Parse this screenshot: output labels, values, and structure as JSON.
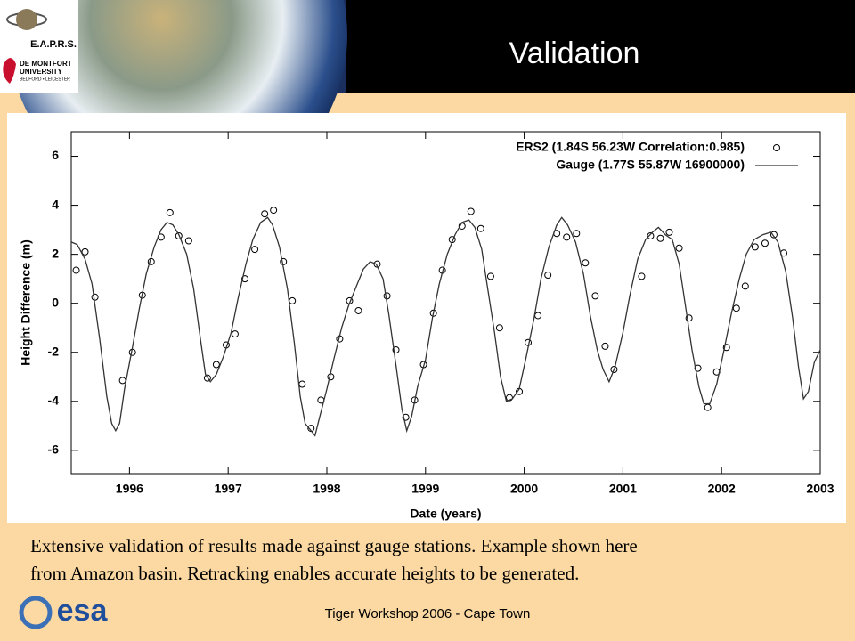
{
  "header": {
    "title": "Validation",
    "logo_name": "E.A.P.R.S.",
    "university_line1": "DE MONTFORT",
    "university_line2": "UNIVERSITY",
    "university_line3": "BEDFORD • LEICESTER"
  },
  "chart_data": {
    "type": "scatter",
    "xlabel": "Date (years)",
    "ylabel": "Height Difference (m)",
    "xlim": [
      1995.41,
      2003.0
    ],
    "ylim": [
      -6.95,
      7.0
    ],
    "xticks": [
      1996,
      1997,
      1998,
      1999,
      2000,
      2001,
      2002,
      2003
    ],
    "yticks": [
      -6,
      -4,
      -2,
      0,
      2,
      4,
      6
    ],
    "legend": "upper right",
    "series": [
      {
        "name": "ERS2 (1.84S 56.23W Correlation:0.985)",
        "style": "markers",
        "color": "#000000",
        "x": [
          1995.46,
          1995.55,
          1995.65,
          1995.93,
          1996.03,
          1996.13,
          1996.22,
          1996.32,
          1996.41,
          1996.5,
          1996.6,
          1996.79,
          1996.88,
          1996.98,
          1997.07,
          1997.17,
          1997.27,
          1997.37,
          1997.46,
          1997.56,
          1997.65,
          1997.75,
          1997.84,
          1997.94,
          1998.04,
          1998.13,
          1998.23,
          1998.32,
          1998.51,
          1998.61,
          1998.7,
          1998.8,
          1998.89,
          1998.98,
          1999.08,
          1999.17,
          1999.27,
          1999.37,
          1999.46,
          1999.56,
          1999.66,
          1999.75,
          1999.85,
          1999.95,
          2000.04,
          2000.14,
          2000.24,
          2000.33,
          2000.43,
          2000.53,
          2000.62,
          2000.72,
          2000.82,
          2000.91,
          2001.19,
          2001.28,
          2001.38,
          2001.47,
          2001.57,
          2001.67,
          2001.76,
          2001.86,
          2001.95,
          2002.05,
          2002.15,
          2002.24,
          2002.34,
          2002.44,
          2002.53,
          2002.63
        ],
        "values": [
          1.35,
          2.1,
          0.25,
          -3.15,
          -2.0,
          0.33,
          1.7,
          2.7,
          3.7,
          2.75,
          2.55,
          -3.05,
          -2.5,
          -1.7,
          -1.25,
          1.0,
          2.2,
          3.65,
          3.8,
          1.7,
          0.1,
          -3.3,
          -5.1,
          -3.95,
          -3.0,
          -1.45,
          0.1,
          -0.3,
          1.6,
          0.3,
          -1.9,
          -4.65,
          -3.95,
          -2.5,
          -0.4,
          1.35,
          2.6,
          3.15,
          3.75,
          3.05,
          1.1,
          -1.0,
          -3.85,
          -3.6,
          -1.6,
          -0.5,
          1.15,
          2.85,
          2.7,
          2.85,
          1.65,
          0.3,
          -1.75,
          -2.7,
          1.1,
          2.75,
          2.65,
          2.9,
          2.25,
          -0.6,
          -2.65,
          -4.25,
          -2.8,
          -1.8,
          -0.2,
          0.7,
          2.3,
          2.45,
          2.8,
          2.05
        ]
      },
      {
        "name": "Gauge (1.77S 55.87W 16900000)",
        "style": "line",
        "color": "#333333",
        "x": [
          1995.41,
          1995.47,
          1995.55,
          1995.62,
          1995.7,
          1995.77,
          1995.82,
          1995.86,
          1995.9,
          1995.95,
          1996.03,
          1996.1,
          1996.17,
          1996.25,
          1996.32,
          1996.38,
          1996.44,
          1996.5,
          1996.58,
          1996.65,
          1996.72,
          1996.77,
          1996.82,
          1996.88,
          1996.95,
          1997.03,
          1997.1,
          1997.18,
          1997.25,
          1997.33,
          1997.4,
          1997.45,
          1997.52,
          1997.6,
          1997.67,
          1997.73,
          1997.78,
          1997.84,
          1997.88,
          1997.93,
          1998.0,
          1998.07,
          1998.15,
          1998.22,
          1998.3,
          1998.37,
          1998.44,
          1998.5,
          1998.57,
          1998.63,
          1998.7,
          1998.76,
          1998.81,
          1998.86,
          1998.92,
          1999.0,
          1999.07,
          1999.14,
          1999.22,
          1999.3,
          1999.37,
          1999.44,
          1999.5,
          1999.57,
          1999.63,
          1999.7,
          1999.76,
          1999.82,
          1999.88,
          1999.95,
          2000.02,
          2000.1,
          2000.17,
          2000.25,
          2000.33,
          2000.38,
          2000.44,
          2000.52,
          2000.6,
          2000.67,
          2000.74,
          2000.8,
          2000.86,
          2000.92,
          2001.0,
          2001.07,
          2001.15,
          2001.23,
          2001.3,
          2001.36,
          2001.43,
          2001.5,
          2001.57,
          2001.63,
          2001.7,
          2001.77,
          2001.82,
          2001.88,
          2001.95,
          2002.02,
          2002.1,
          2002.18,
          2002.25,
          2002.33,
          2002.42,
          2002.5,
          2002.57,
          2002.65,
          2002.72,
          2002.78,
          2002.83,
          2002.88,
          2002.94,
          2003.0
        ],
        "values": [
          2.5,
          2.4,
          1.8,
          0.8,
          -1.5,
          -3.8,
          -4.9,
          -5.2,
          -4.9,
          -3.5,
          -1.8,
          -0.2,
          1.2,
          2.3,
          3.0,
          3.3,
          3.2,
          2.8,
          2.0,
          0.6,
          -1.5,
          -2.9,
          -3.2,
          -2.9,
          -2.2,
          -1.2,
          0.2,
          1.6,
          2.6,
          3.3,
          3.5,
          3.2,
          2.3,
          0.6,
          -1.6,
          -3.8,
          -4.9,
          -5.2,
          -5.4,
          -4.6,
          -3.5,
          -2.3,
          -1.0,
          -0.1,
          0.7,
          1.4,
          1.7,
          1.6,
          1.0,
          -0.5,
          -2.5,
          -4.3,
          -5.2,
          -4.6,
          -3.4,
          -2.3,
          -0.6,
          0.8,
          2.0,
          2.8,
          3.3,
          3.4,
          3.1,
          2.2,
          0.6,
          -1.2,
          -3.0,
          -4.0,
          -3.9,
          -3.5,
          -2.2,
          -0.6,
          1.0,
          2.3,
          3.2,
          3.5,
          3.2,
          2.5,
          1.2,
          -0.5,
          -1.9,
          -2.7,
          -3.2,
          -2.6,
          -1.2,
          0.3,
          1.8,
          2.6,
          2.9,
          3.1,
          2.8,
          2.6,
          1.6,
          0.0,
          -1.9,
          -3.4,
          -4.1,
          -4.1,
          -3.3,
          -2.0,
          -0.4,
          1.0,
          2.0,
          2.6,
          2.8,
          2.9,
          2.5,
          1.3,
          -0.6,
          -2.6,
          -3.9,
          -3.6,
          -2.4,
          -1.9
        ]
      }
    ]
  },
  "body": {
    "line1": "Extensive validation of results made against gauge stations. Example shown here",
    "line2": "from Amazon basin. Retracking enables accurate heights to be generated."
  },
  "footer": {
    "esa_logo": "esa",
    "text": "Tiger Workshop 2006 - Cape Town"
  }
}
